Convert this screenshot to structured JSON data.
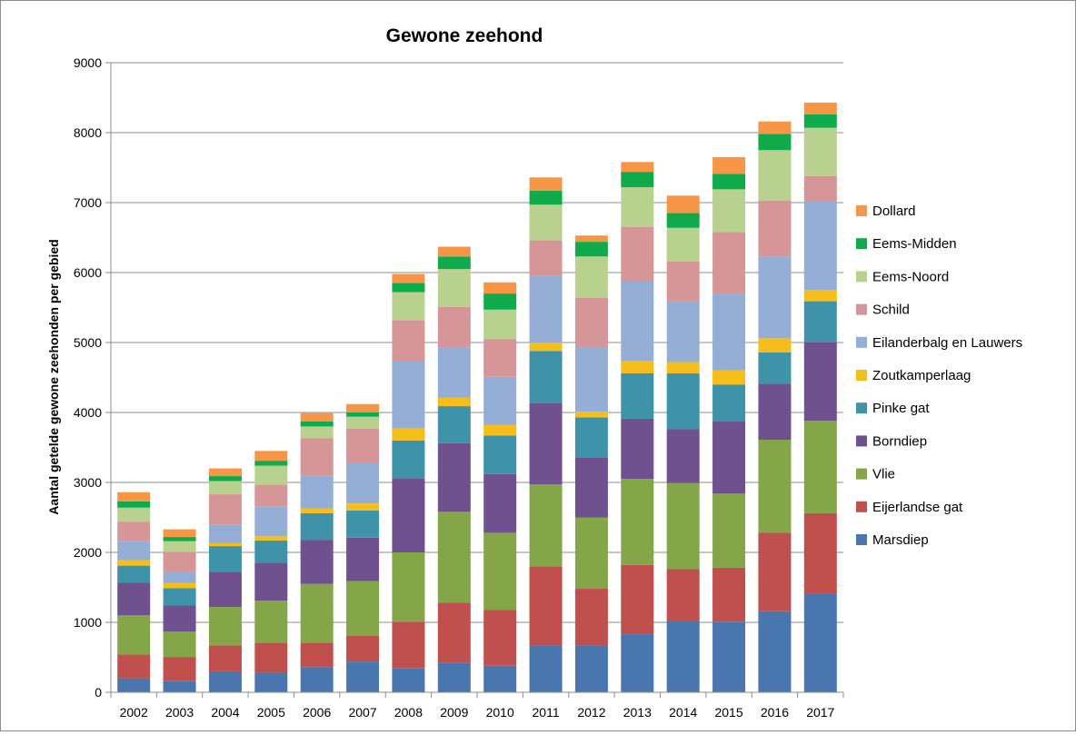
{
  "chart_data": {
    "type": "bar",
    "stacked": true,
    "title": "Gewone zeehond",
    "xlabel": "",
    "ylabel": "Aantal getelde gewone zeehonden per gebied",
    "ylim": [
      0,
      9000
    ],
    "yticks": [
      0,
      1000,
      2000,
      3000,
      4000,
      5000,
      6000,
      7000,
      8000,
      9000
    ],
    "grid": true,
    "legend_position": "right",
    "categories": [
      "2002",
      "2003",
      "2004",
      "2005",
      "2006",
      "2007",
      "2008",
      "2009",
      "2010",
      "2011",
      "2012",
      "2013",
      "2014",
      "2015",
      "2016",
      "2017"
    ],
    "series": [
      {
        "name": "Marsdiep",
        "color": "#4a76b0",
        "values": [
          200,
          160,
          300,
          280,
          360,
          440,
          340,
          420,
          380,
          670,
          670,
          830,
          1020,
          1010,
          1160,
          1410
        ]
      },
      {
        "name": "Eijerlandse gat",
        "color": "#c0504d",
        "values": [
          340,
          340,
          370,
          430,
          350,
          370,
          670,
          860,
          800,
          1130,
          810,
          990,
          740,
          770,
          1120,
          1150
        ]
      },
      {
        "name": "Vlie",
        "color": "#84a548",
        "values": [
          560,
          370,
          550,
          600,
          840,
          780,
          990,
          1300,
          1100,
          1170,
          1020,
          1230,
          1230,
          1060,
          1330,
          1320
        ]
      },
      {
        "name": "Borndiep",
        "color": "#6f5190",
        "values": [
          470,
          370,
          500,
          540,
          630,
          620,
          1060,
          980,
          840,
          1160,
          860,
          860,
          770,
          1030,
          800,
          1130
        ]
      },
      {
        "name": "Pinke gat",
        "color": "#3f93a8",
        "values": [
          240,
          250,
          370,
          320,
          380,
          390,
          540,
          530,
          550,
          750,
          570,
          650,
          800,
          530,
          450,
          580
        ]
      },
      {
        "name": "Zoutkamperlaag",
        "color": "#f5be1a",
        "values": [
          80,
          70,
          40,
          60,
          70,
          100,
          170,
          120,
          150,
          120,
          80,
          180,
          160,
          200,
          200,
          160
        ]
      },
      {
        "name": "Eilanderbalg en Lauwers",
        "color": "#94aed6",
        "values": [
          270,
          160,
          270,
          430,
          470,
          580,
          970,
          720,
          690,
          950,
          920,
          1130,
          870,
          1090,
          1170,
          1270
        ]
      },
      {
        "name": "Schild",
        "color": "#d69596",
        "values": [
          280,
          290,
          430,
          310,
          530,
          490,
          580,
          580,
          540,
          510,
          710,
          780,
          570,
          890,
          800,
          360
        ]
      },
      {
        "name": "Eems-Noord",
        "color": "#b9d18f",
        "values": [
          200,
          150,
          190,
          270,
          170,
          170,
          400,
          540,
          420,
          510,
          590,
          570,
          480,
          610,
          720,
          690
        ]
      },
      {
        "name": "Eems-Midden",
        "color": "#0eaa4c",
        "values": [
          90,
          60,
          70,
          70,
          70,
          60,
          130,
          180,
          230,
          200,
          210,
          220,
          210,
          220,
          230,
          190
        ]
      },
      {
        "name": "Dollard",
        "color": "#f79646",
        "values": [
          130,
          110,
          110,
          140,
          120,
          120,
          130,
          140,
          160,
          190,
          90,
          140,
          250,
          240,
          180,
          170
        ]
      }
    ]
  }
}
